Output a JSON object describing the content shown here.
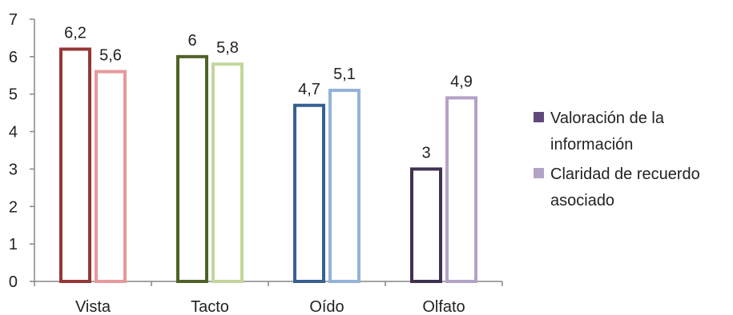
{
  "chart_data": {
    "type": "bar",
    "categories": [
      "Vista",
      "Tacto",
      "Oído",
      "Olfato"
    ],
    "series": [
      {
        "name": "Valoración de la información",
        "legend_lines": [
          "Valoración de la",
          "información"
        ],
        "values": [
          6.2,
          6,
          4.7,
          3
        ],
        "labels": [
          "6,2",
          "6",
          "4,7",
          "3"
        ]
      },
      {
        "name": "Claridad de recuerdo asociado",
        "legend_lines": [
          "Claridad de recuerdo",
          "asociado"
        ],
        "values": [
          5.6,
          5.8,
          5.1,
          4.9
        ],
        "labels": [
          "5,6",
          "5,8",
          "5,1",
          "4,9"
        ]
      }
    ],
    "bar_colors": [
      [
        "#953735",
        "#e6999a"
      ],
      [
        "#4f6228",
        "#c3d69b"
      ],
      [
        "#376092",
        "#95b3d7"
      ],
      [
        "#403151",
        "#b3a2c7"
      ]
    ],
    "legend_colors": [
      "#604a7b",
      "#b3a2c7"
    ],
    "ylim": [
      0,
      7
    ],
    "yticks": [
      "0",
      "1",
      "2",
      "3",
      "4",
      "5",
      "6",
      "7"
    ],
    "title": "",
    "xlabel": "",
    "ylabel": "",
    "legend_position": "right",
    "grid": false
  }
}
